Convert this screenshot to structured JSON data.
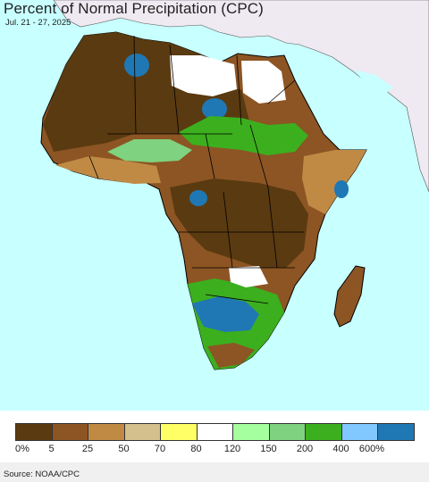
{
  "map": {
    "title": "Percent of Normal Precipitation (CPC)",
    "date_range": "Jul. 21 - 27, 2025",
    "source": "Source: NOAA/CPC",
    "colors": {
      "ocean": "#c8ffff",
      "other_land": "#efe9f1",
      "border": "#000000"
    }
  },
  "legend": {
    "swatches": [
      {
        "color": "#5a3a10"
      },
      {
        "color": "#8c5523"
      },
      {
        "color": "#c08a45"
      },
      {
        "color": "#d4c08c"
      },
      {
        "color": "#ffff66"
      },
      {
        "color": "#ffffff"
      },
      {
        "color": "#a6ff9e"
      },
      {
        "color": "#7fd27f"
      },
      {
        "color": "#3caf1e"
      },
      {
        "color": "#80c8ff"
      },
      {
        "color": "#1f78b4"
      }
    ],
    "labels": [
      "0%",
      "5",
      "25",
      "50",
      "70",
      "80",
      "120",
      "150",
      "200",
      "400",
      "600%"
    ]
  }
}
